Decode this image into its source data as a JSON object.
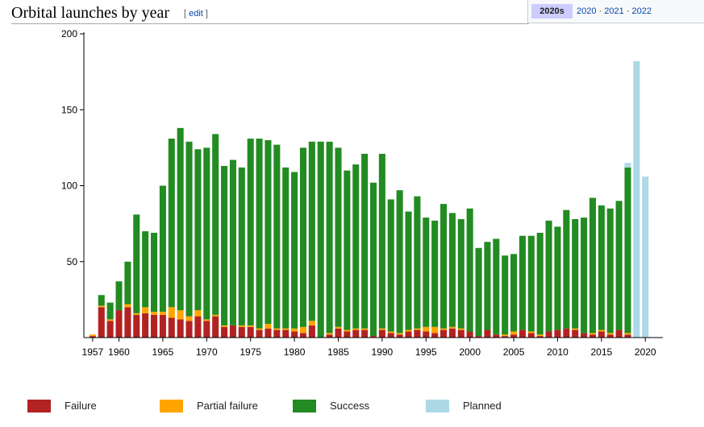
{
  "section": {
    "title": "Orbital launches by year",
    "edit_open": "[ ",
    "edit_label": "edit",
    "edit_close": " ]"
  },
  "navbox": {
    "group": "2020s",
    "years": [
      "2020",
      "2021",
      "2022"
    ],
    "sep": " · "
  },
  "colors": {
    "failure": "#b22222",
    "partial": "#ffa500",
    "success": "#228b22",
    "planned": "#add8e6"
  },
  "chart_data": {
    "type": "bar",
    "stacked": true,
    "x": [
      1957,
      1958,
      1959,
      1960,
      1961,
      1962,
      1963,
      1964,
      1965,
      1966,
      1967,
      1968,
      1969,
      1970,
      1971,
      1972,
      1973,
      1974,
      1975,
      1976,
      1977,
      1978,
      1979,
      1980,
      1981,
      1982,
      1983,
      1984,
      1985,
      1986,
      1987,
      1988,
      1989,
      1990,
      1991,
      1992,
      1993,
      1994,
      1995,
      1996,
      1997,
      1998,
      1999,
      2000,
      2001,
      2002,
      2003,
      2004,
      2005,
      2006,
      2007,
      2008,
      2009,
      2010,
      2011,
      2012,
      2013,
      2014,
      2015,
      2016,
      2017,
      2018,
      2019
    ],
    "series": [
      {
        "name": "Failure",
        "color": "#b22222",
        "values": [
          1,
          20,
          11,
          18,
          20,
          15,
          16,
          15,
          15,
          13,
          12,
          11,
          14,
          11,
          14,
          7,
          8,
          7,
          7,
          5,
          6,
          5,
          5,
          4,
          3,
          8,
          0,
          2,
          6,
          4,
          5,
          5,
          1,
          5,
          3,
          2,
          4,
          5,
          4,
          3,
          5,
          6,
          5,
          4,
          1,
          5,
          2,
          1,
          2,
          5,
          3,
          1,
          4,
          5,
          6,
          5,
          3,
          2,
          4,
          2,
          5,
          2,
          0
        ]
      },
      {
        "name": "Partial failure",
        "color": "#ffa500",
        "values": [
          1,
          1,
          1,
          0,
          2,
          1,
          4,
          2,
          2,
          7,
          6,
          3,
          4,
          1,
          1,
          1,
          0,
          1,
          1,
          1,
          3,
          1,
          1,
          2,
          4,
          3,
          0,
          1,
          1,
          1,
          1,
          1,
          0,
          1,
          1,
          1,
          1,
          1,
          3,
          4,
          1,
          1,
          1,
          0,
          0,
          0,
          0,
          1,
          2,
          0,
          1,
          1,
          0,
          0,
          0,
          1,
          0,
          1,
          1,
          1,
          0,
          1,
          0
        ]
      },
      {
        "name": "Success",
        "color": "#228b22",
        "values": [
          0,
          7,
          11,
          19,
          28,
          65,
          50,
          52,
          83,
          111,
          120,
          115,
          106,
          113,
          119,
          105,
          109,
          104,
          123,
          125,
          121,
          121,
          106,
          103,
          118,
          118,
          129,
          126,
          118,
          105,
          108,
          115,
          101,
          115,
          87,
          94,
          78,
          87,
          72,
          70,
          82,
          75,
          72,
          81,
          58,
          58,
          63,
          52,
          51,
          62,
          63,
          67,
          73,
          68,
          78,
          72,
          76,
          89,
          82,
          82,
          85,
          109,
          0
        ]
      },
      {
        "name": "Planned",
        "color": "#add8e6",
        "values": [
          0,
          0,
          0,
          0,
          0,
          0,
          0,
          0,
          0,
          0,
          0,
          0,
          0,
          0,
          0,
          0,
          0,
          0,
          0,
          0,
          0,
          0,
          0,
          0,
          0,
          0,
          0,
          0,
          0,
          0,
          0,
          0,
          0,
          0,
          0,
          0,
          0,
          0,
          0,
          0,
          0,
          0,
          0,
          0,
          0,
          0,
          0,
          0,
          0,
          0,
          0,
          0,
          0,
          0,
          0,
          0,
          0,
          0,
          0,
          0,
          0,
          3,
          182
        ]
      }
    ],
    "extra_x": [
      2020
    ],
    "extra_planned": [
      106
    ],
    "ylim": [
      0,
      200
    ],
    "yticks": [
      50,
      100,
      150,
      200
    ],
    "xticks": [
      1957,
      1960,
      1965,
      1970,
      1975,
      1980,
      1985,
      1990,
      1995,
      2000,
      2005,
      2010,
      2015,
      2020
    ],
    "xlim": [
      1956,
      2022
    ],
    "legend_position": "bottom",
    "title": "",
    "xlabel": "",
    "ylabel": ""
  },
  "legend": [
    {
      "label": "Failure",
      "color": "#b22222"
    },
    {
      "label": "Partial failure",
      "color": "#ffa500"
    },
    {
      "label": "Success",
      "color": "#228b22"
    },
    {
      "label": "Planned",
      "color": "#add8e6"
    }
  ]
}
